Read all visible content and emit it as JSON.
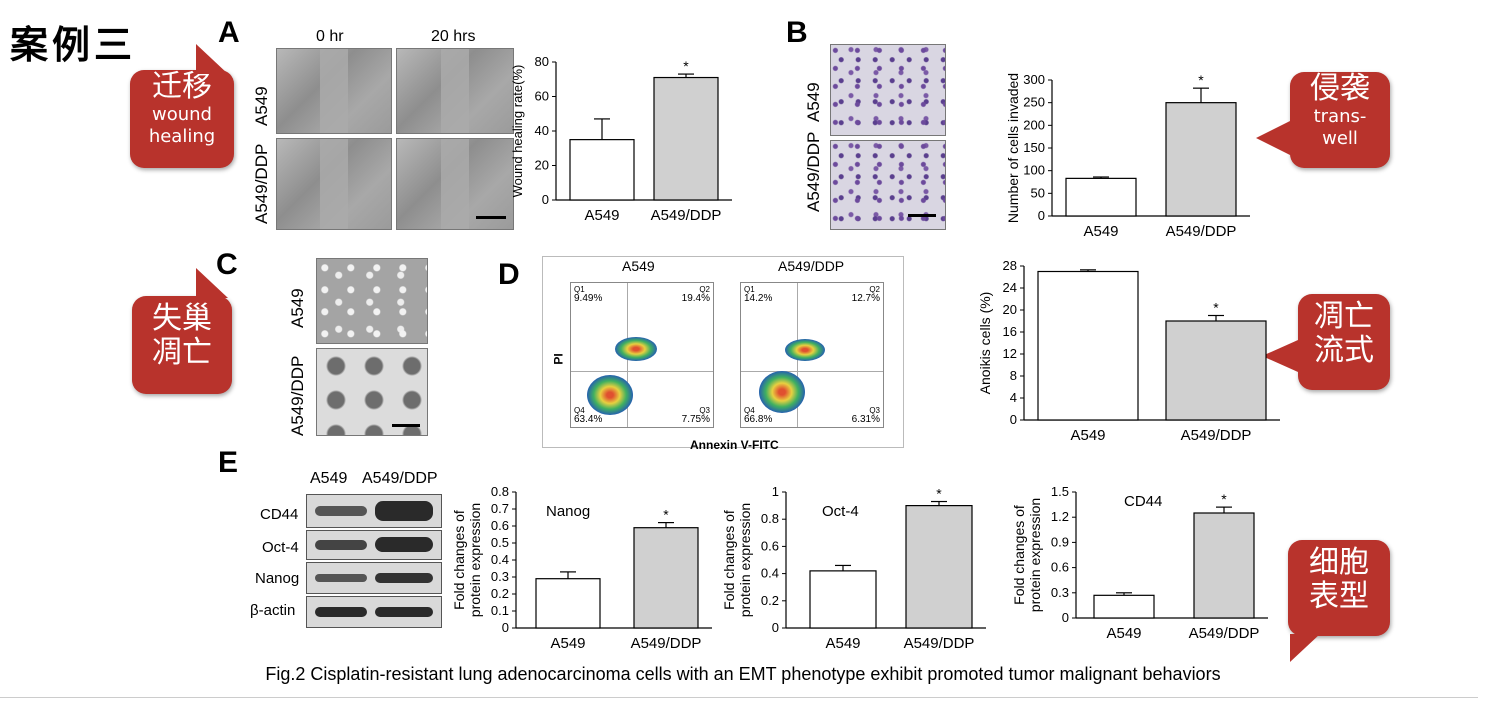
{
  "header_chinese": "案例三",
  "panels": {
    "a": "A",
    "b": "B",
    "c": "C",
    "d": "D",
    "e": "E"
  },
  "bubbles": {
    "migration": {
      "zh": "迁移",
      "en1": "wound",
      "en2": "healing"
    },
    "invasion": {
      "zh": "侵袭",
      "en1": "trans-",
      "en2": "well"
    },
    "anoikis": {
      "zh1": "失巢",
      "zh2": "凋亡"
    },
    "flow": {
      "zh1": "凋亡",
      "zh2": "流式"
    },
    "phenotype": {
      "zh1": "细胞",
      "zh2": "表型"
    }
  },
  "micro_labels": {
    "time0": "0 hr",
    "time20": "20 hrs",
    "a549": "A549",
    "a549ddp": "A549/DDP"
  },
  "flow_panels": {
    "title_left": "A549",
    "title_right": "A549/DDP",
    "x_label": "Annexin V-FITC",
    "y_label": "PI",
    "left": {
      "q1": "Q1",
      "q1v": "9.49%",
      "q2": "Q2",
      "q2v": "19.4%",
      "q4": "Q4",
      "q4v": "63.4%",
      "q3": "Q3",
      "q3v": "7.75%"
    },
    "right": {
      "q1": "Q1",
      "q1v": "14.2%",
      "q2": "Q2",
      "q2v": "12.7%",
      "q4": "Q4",
      "q4v": "66.8%",
      "q3": "Q3",
      "q3v": "6.31%"
    }
  },
  "blot": {
    "lanes": [
      "A549",
      "A549/DDP"
    ],
    "proteins": [
      "CD44",
      "Oct-4",
      "Nanog",
      "β-actin"
    ]
  },
  "caption": "Fig.2 Cisplatin-resistant lung adenocarcinoma cells with an EMT phenotype exhibit promoted tumor malignant behaviors",
  "colors": {
    "bar_control": "#ffffff",
    "bar_treated": "#d0d0d0",
    "bubble": "#b8332c"
  },
  "chart_data": [
    {
      "id": "wound",
      "type": "bar",
      "categories": [
        "A549",
        "A549/DDP"
      ],
      "values": [
        35,
        71
      ],
      "errors": [
        12,
        2
      ],
      "sig": [
        "",
        "*"
      ],
      "ylabel": "Wound healing rate(%)",
      "ylim": [
        0,
        80
      ],
      "ticks": [
        0,
        20,
        40,
        60,
        80
      ],
      "title": ""
    },
    {
      "id": "invaded",
      "type": "bar",
      "categories": [
        "A549",
        "A549/DDP"
      ],
      "values": [
        83,
        250
      ],
      "errors": [
        3,
        32
      ],
      "sig": [
        "",
        "*"
      ],
      "ylabel": "Number of cells invaded",
      "ylim": [
        0,
        300
      ],
      "ticks": [
        0,
        50,
        100,
        150,
        200,
        250,
        300
      ],
      "title": ""
    },
    {
      "id": "anoikis",
      "type": "bar",
      "categories": [
        "A549",
        "A549/DDP"
      ],
      "values": [
        27,
        18
      ],
      "errors": [
        0.3,
        1
      ],
      "sig": [
        "",
        "*"
      ],
      "ylabel": "Anoikis cells (%)",
      "ylim": [
        0,
        28
      ],
      "ticks": [
        0,
        4,
        8,
        12,
        16,
        20,
        24,
        28
      ],
      "title": ""
    },
    {
      "id": "nanog",
      "type": "bar",
      "categories": [
        "A549",
        "A549/DDP"
      ],
      "values": [
        0.29,
        0.59
      ],
      "errors": [
        0.04,
        0.03
      ],
      "sig": [
        "",
        "*"
      ],
      "ylabel": "Fold changes of protein expression",
      "ylim": [
        0,
        0.8
      ],
      "ticks": [
        0,
        0.1,
        0.2,
        0.3,
        0.4,
        0.5,
        0.6,
        0.7,
        0.8
      ],
      "title": "Nanog"
    },
    {
      "id": "oct4",
      "type": "bar",
      "categories": [
        "A549",
        "A549/DDP"
      ],
      "values": [
        0.42,
        0.9
      ],
      "errors": [
        0.04,
        0.03
      ],
      "sig": [
        "",
        "*"
      ],
      "ylabel": "Fold changes of protein expression",
      "ylim": [
        0,
        1.0
      ],
      "ticks": [
        0,
        0.2,
        0.4,
        0.6,
        0.8,
        1.0
      ],
      "title": "Oct-4"
    },
    {
      "id": "cd44",
      "type": "bar",
      "categories": [
        "A549",
        "A549/DDP"
      ],
      "values": [
        0.27,
        1.25
      ],
      "errors": [
        0.03,
        0.07
      ],
      "sig": [
        "",
        "*"
      ],
      "ylabel": "Fold changes of protein expression",
      "ylim": [
        0,
        1.5
      ],
      "ticks": [
        0,
        0.3,
        0.6,
        0.9,
        1.2,
        1.5
      ],
      "title": "CD44"
    }
  ]
}
